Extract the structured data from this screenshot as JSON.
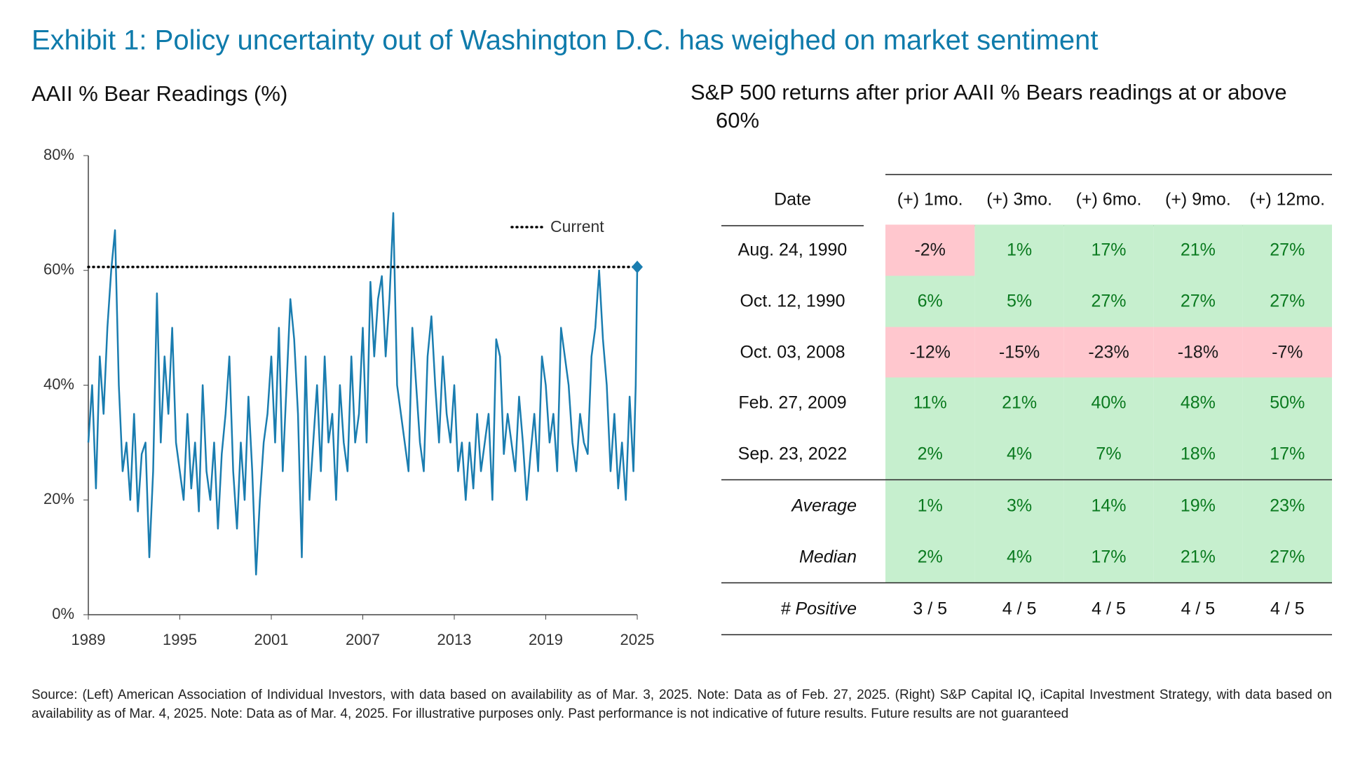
{
  "title": "Exhibit 1: Policy uncertainty out of Washington D.C. has weighed on market sentiment",
  "chart_data": {
    "type": "line",
    "title": "AAII % Bear Readings (%)",
    "x": [
      1989,
      1989.25,
      1989.5,
      1989.75,
      1990,
      1990.25,
      1990.5,
      1990.75,
      1991,
      1991.25,
      1991.5,
      1991.75,
      1992,
      1992.25,
      1992.5,
      1992.75,
      1993,
      1993.25,
      1993.5,
      1993.75,
      1994,
      1994.25,
      1994.5,
      1994.75,
      1995,
      1995.25,
      1995.5,
      1995.75,
      1996,
      1996.25,
      1996.5,
      1996.75,
      1997,
      1997.25,
      1997.5,
      1997.75,
      1998,
      1998.25,
      1998.5,
      1998.75,
      1999,
      1999.25,
      1999.5,
      1999.75,
      2000,
      2000.25,
      2000.5,
      2000.75,
      2001,
      2001.25,
      2001.5,
      2001.75,
      2002,
      2002.25,
      2002.5,
      2002.75,
      2003,
      2003.25,
      2003.5,
      2003.75,
      2004,
      2004.25,
      2004.5,
      2004.75,
      2005,
      2005.25,
      2005.5,
      2005.75,
      2006,
      2006.25,
      2006.5,
      2006.75,
      2007,
      2007.25,
      2007.5,
      2007.75,
      2008,
      2008.25,
      2008.5,
      2008.75,
      2009,
      2009.25,
      2009.5,
      2009.75,
      2010,
      2010.25,
      2010.5,
      2010.75,
      2011,
      2011.25,
      2011.5,
      2011.75,
      2012,
      2012.25,
      2012.5,
      2012.75,
      2013,
      2013.25,
      2013.5,
      2013.75,
      2014,
      2014.25,
      2014.5,
      2014.75,
      2015,
      2015.25,
      2015.5,
      2015.75,
      2016,
      2016.25,
      2016.5,
      2016.75,
      2017,
      2017.25,
      2017.5,
      2017.75,
      2018,
      2018.25,
      2018.5,
      2018.75,
      2019,
      2019.25,
      2019.5,
      2019.75,
      2020,
      2020.25,
      2020.5,
      2020.75,
      2021,
      2021.25,
      2021.5,
      2021.75,
      2022,
      2022.25,
      2022.5,
      2022.75,
      2023,
      2023.25,
      2023.5,
      2023.75,
      2024,
      2024.25,
      2024.5,
      2024.75,
      2024.9,
      2025
    ],
    "series": [
      {
        "name": "AAII % Bears",
        "color": "#1a7db0",
        "values": [
          30,
          40,
          22,
          45,
          35,
          50,
          60,
          67,
          40,
          25,
          30,
          20,
          35,
          18,
          28,
          30,
          10,
          25,
          56,
          30,
          45,
          35,
          50,
          30,
          25,
          20,
          35,
          22,
          30,
          18,
          40,
          25,
          20,
          30,
          15,
          28,
          35,
          45,
          25,
          15,
          30,
          20,
          38,
          25,
          7,
          20,
          30,
          35,
          45,
          30,
          50,
          25,
          40,
          55,
          48,
          35,
          10,
          45,
          20,
          30,
          40,
          25,
          45,
          30,
          35,
          20,
          40,
          30,
          25,
          45,
          30,
          35,
          50,
          30,
          58,
          45,
          55,
          59,
          45,
          55,
          70,
          40,
          35,
          30,
          25,
          50,
          40,
          30,
          25,
          45,
          52,
          40,
          30,
          45,
          35,
          30,
          40,
          25,
          30,
          20,
          30,
          22,
          35,
          25,
          30,
          35,
          20,
          48,
          45,
          28,
          35,
          30,
          25,
          38,
          30,
          20,
          28,
          35,
          25,
          45,
          40,
          30,
          35,
          25,
          50,
          45,
          40,
          30,
          25,
          35,
          30,
          28,
          45,
          50,
          60,
          48,
          40,
          25,
          35,
          22,
          30,
          20,
          38,
          25,
          40,
          60.6
        ]
      }
    ],
    "reference": {
      "name": "Current",
      "value": 60.6,
      "color": "#000000"
    },
    "xlim": [
      1989,
      2025
    ],
    "xticks": [
      1989,
      1995,
      2001,
      2007,
      2013,
      2019,
      2025
    ],
    "ylim": [
      0,
      80
    ],
    "yticks": [
      {
        "value": 0,
        "label": "0%"
      },
      {
        "value": 20,
        "label": "20%"
      },
      {
        "value": 40,
        "label": "40%"
      },
      {
        "value": 60,
        "label": "60%"
      },
      {
        "value": 80,
        "label": "80%"
      }
    ]
  },
  "table": {
    "title": "S&P 500 returns after prior AAII % Bears readings at or above 60%",
    "header": [
      "Date",
      "(+) 1mo.",
      "(+) 3mo.",
      "(+) 6mo.",
      "(+) 9mo.",
      "(+) 12mo."
    ],
    "rows": [
      [
        "Aug. 24, 1990",
        "-2%",
        "1%",
        "17%",
        "21%",
        "27%"
      ],
      [
        "Oct. 12, 1990",
        "6%",
        "5%",
        "27%",
        "27%",
        "27%"
      ],
      [
        "Oct. 03, 2008",
        "-12%",
        "-15%",
        "-23%",
        "-18%",
        "-7%"
      ],
      [
        "Feb. 27, 2009",
        "11%",
        "21%",
        "40%",
        "48%",
        "50%"
      ],
      [
        "Sep. 23, 2022",
        "2%",
        "4%",
        "7%",
        "18%",
        "17%"
      ]
    ],
    "summary": [
      [
        "Average",
        "1%",
        "3%",
        "14%",
        "19%",
        "23%"
      ],
      [
        "Median",
        "2%",
        "4%",
        "17%",
        "21%",
        "27%"
      ]
    ],
    "positive": [
      "# Positive",
      "3 / 5",
      "4 / 5",
      "4 / 5",
      "4 / 5",
      "4 / 5"
    ]
  },
  "source": "Source: (Left) American Association of Individual Investors, with data based on availability as of Mar. 3, 2025. Note: Data as of Feb. 27, 2025. (Right) S&P Capital IQ, iCapital Investment Strategy, with data based on availability as of Mar. 4, 2025. Note: Data as of Mar. 4, 2025.  For illustrative purposes only. Past performance is not indicative of future results. Future results are not guaranteed"
}
